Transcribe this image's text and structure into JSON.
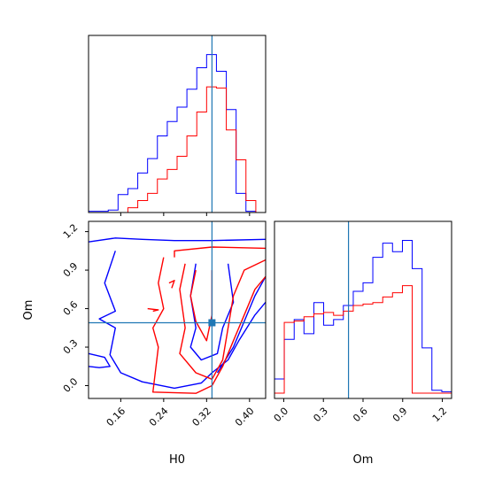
{
  "chart_data": [
    {
      "panel": "H0 marginal",
      "type": "step-histogram",
      "xlim": [
        0.1,
        0.43
      ],
      "bin_edges": [
        0.1,
        0.1183,
        0.1367,
        0.155,
        0.1733,
        0.1917,
        0.21,
        0.2283,
        0.2467,
        0.265,
        0.2833,
        0.3017,
        0.32,
        0.3383,
        0.3567,
        0.375,
        0.3933,
        0.4117,
        0.43
      ],
      "series": [
        {
          "color": "#0000ff",
          "values": [
            1,
            1,
            2,
            15,
            20,
            33,
            45,
            64,
            76,
            88,
            103,
            121,
            132,
            118,
            86,
            16,
            1,
            0
          ]
        },
        {
          "color": "#ff0000",
          "values": [
            0,
            0,
            0,
            0,
            4,
            10,
            16,
            28,
            36,
            47,
            64,
            84,
            105,
            104,
            69,
            44,
            10,
            0
          ]
        }
      ],
      "truth_line": {
        "axis": "x",
        "value": 0.33,
        "color": "#1f77b4"
      }
    },
    {
      "panel": "H0 vs Om joint",
      "type": "contour",
      "xlabel": "H0",
      "ylabel": "Om",
      "xlim": [
        0.1,
        0.43
      ],
      "ylim": [
        -0.1,
        1.28
      ],
      "xticks": [
        "0.16",
        "0.24",
        "0.32",
        "0.40"
      ],
      "xtick_values": [
        0.16,
        0.24,
        0.32,
        0.4
      ],
      "yticks": [
        "0.0",
        "0.3",
        "0.6",
        "0.9",
        "1.2"
      ],
      "ytick_values": [
        0.0,
        0.3,
        0.6,
        0.9,
        1.2
      ],
      "series": [
        {
          "color": "#0000ff",
          "contours": [
            [
              [
                0.1,
                1.12
              ],
              [
                0.15,
                1.15
              ],
              [
                0.2,
                1.14
              ],
              [
                0.26,
                1.13
              ],
              [
                0.33,
                1.13
              ],
              [
                0.43,
                1.14
              ]
            ],
            [
              [
                0.15,
                1.05
              ],
              [
                0.13,
                0.8
              ],
              [
                0.15,
                0.58
              ],
              [
                0.12,
                0.52
              ],
              [
                0.15,
                0.45
              ],
              [
                0.14,
                0.24
              ],
              [
                0.16,
                0.1
              ],
              [
                0.2,
                0.03
              ],
              [
                0.26,
                -0.02
              ],
              [
                0.31,
                0.02
              ],
              [
                0.33,
                0.1
              ],
              [
                0.36,
                0.2
              ],
              [
                0.38,
                0.35
              ],
              [
                0.41,
                0.55
              ],
              [
                0.43,
                0.65
              ]
            ],
            [
              [
                0.1,
                0.25
              ],
              [
                0.13,
                0.22
              ],
              [
                0.14,
                0.15
              ],
              [
                0.12,
                0.14
              ],
              [
                0.1,
                0.15
              ]
            ],
            [
              [
                0.3,
                0.95
              ],
              [
                0.29,
                0.7
              ],
              [
                0.3,
                0.45
              ],
              [
                0.29,
                0.3
              ],
              [
                0.31,
                0.2
              ],
              [
                0.34,
                0.25
              ],
              [
                0.35,
                0.45
              ],
              [
                0.37,
                0.65
              ],
              [
                0.36,
                0.95
              ]
            ],
            [
              [
                0.34,
                0.1
              ],
              [
                0.37,
                0.3
              ],
              [
                0.39,
                0.5
              ],
              [
                0.41,
                0.7
              ],
              [
                0.43,
                0.85
              ]
            ]
          ]
        },
        {
          "color": "#ff0000",
          "contours": [
            [
              [
                0.26,
                1.0
              ],
              [
                0.26,
                1.05
              ],
              [
                0.33,
                1.08
              ],
              [
                0.43,
                1.07
              ]
            ],
            [
              [
                0.24,
                1.0
              ],
              [
                0.23,
                0.8
              ],
              [
                0.24,
                0.6
              ],
              [
                0.22,
                0.45
              ],
              [
                0.23,
                0.3
              ],
              [
                0.22,
                -0.05
              ],
              [
                0.3,
                -0.06
              ],
              [
                0.33,
                0.0
              ],
              [
                0.35,
                0.15
              ],
              [
                0.37,
                0.35
              ],
              [
                0.39,
                0.55
              ],
              [
                0.41,
                0.75
              ],
              [
                0.43,
                0.85
              ]
            ],
            [
              [
                0.28,
                0.95
              ],
              [
                0.27,
                0.75
              ],
              [
                0.28,
                0.45
              ],
              [
                0.27,
                0.25
              ],
              [
                0.3,
                0.1
              ],
              [
                0.33,
                0.05
              ],
              [
                0.35,
                0.2
              ],
              [
                0.36,
                0.45
              ],
              [
                0.37,
                0.7
              ],
              [
                0.39,
                0.9
              ],
              [
                0.43,
                0.98
              ]
            ],
            [
              [
                0.3,
                0.9
              ],
              [
                0.29,
                0.7
              ],
              [
                0.3,
                0.5
              ],
              [
                0.32,
                0.35
              ],
              [
                0.33,
                0.55
              ],
              [
                0.33,
                0.9
              ]
            ],
            [
              [
                0.25,
                0.8
              ],
              [
                0.26,
                0.82
              ],
              [
                0.255,
                0.76
              ]
            ],
            [
              [
                0.21,
                0.6
              ],
              [
                0.23,
                0.59
              ],
              [
                0.22,
                0.58
              ]
            ]
          ]
        }
      ],
      "truth_point": {
        "x": 0.33,
        "y": 0.49,
        "color": "#1f77b4"
      }
    },
    {
      "panel": "Om marginal",
      "type": "step-histogram",
      "xlabel": "Om",
      "xlim": [
        -0.07,
        1.27
      ],
      "xticks": [
        "0.0",
        "0.3",
        "0.6",
        "0.9",
        "1.2"
      ],
      "xtick_values": [
        0.0,
        0.3,
        0.6,
        0.9,
        1.2
      ],
      "bin_edges": [
        -0.07,
        0.004,
        0.079,
        0.153,
        0.228,
        0.302,
        0.377,
        0.451,
        0.526,
        0.6,
        0.674,
        0.749,
        0.823,
        0.898,
        0.972,
        1.047,
        1.121,
        1.196,
        1.27
      ],
      "series": [
        {
          "color": "#0000ff",
          "values": [
            10,
            38,
            52,
            42,
            64,
            48,
            52,
            62,
            72,
            78,
            96,
            106,
            100,
            108,
            88,
            32,
            2,
            1
          ]
        },
        {
          "color": "#ff0000",
          "values": [
            0,
            50,
            51,
            54,
            56,
            57,
            55,
            58,
            62,
            63,
            64,
            68,
            71,
            76,
            0,
            0,
            0,
            0
          ]
        }
      ],
      "truth_line": {
        "axis": "x",
        "value": 0.49,
        "color": "#1f77b4"
      }
    }
  ]
}
